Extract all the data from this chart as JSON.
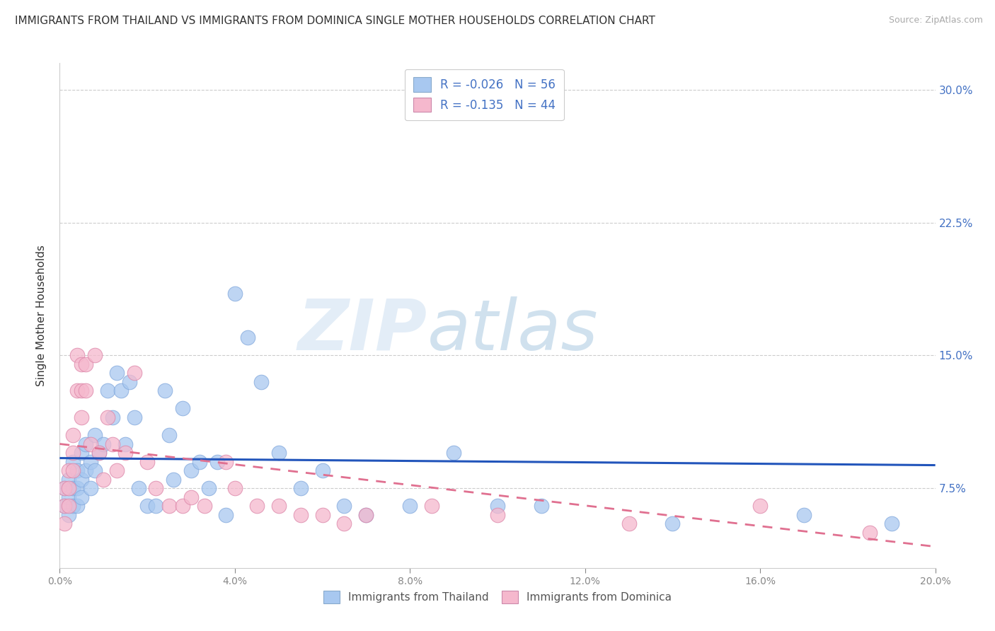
{
  "title": "IMMIGRANTS FROM THAILAND VS IMMIGRANTS FROM DOMINICA SINGLE MOTHER HOUSEHOLDS CORRELATION CHART",
  "source": "Source: ZipAtlas.com",
  "ylabel": "Single Mother Households",
  "ytick_labels": [
    "7.5%",
    "15.0%",
    "22.5%",
    "30.0%"
  ],
  "ytick_values": [
    0.075,
    0.15,
    0.225,
    0.3
  ],
  "xlim": [
    0.0,
    0.2
  ],
  "ylim": [
    0.03,
    0.315
  ],
  "legend_R_thailand": "-0.026",
  "legend_N_thailand": "56",
  "legend_R_dominica": "-0.135",
  "legend_N_dominica": "44",
  "color_thailand": "#a8c8f0",
  "color_dominica": "#f5b8cd",
  "line_color_thailand": "#2255bb",
  "line_color_dominica": "#e07090",
  "background_color": "#ffffff",
  "watermark_zip": "ZIP",
  "watermark_atlas": "atlas",
  "title_fontsize": 11,
  "source_fontsize": 9,
  "thailand_x": [
    0.001,
    0.001,
    0.002,
    0.002,
    0.002,
    0.003,
    0.003,
    0.003,
    0.004,
    0.004,
    0.004,
    0.005,
    0.005,
    0.005,
    0.006,
    0.006,
    0.007,
    0.007,
    0.008,
    0.008,
    0.009,
    0.01,
    0.011,
    0.012,
    0.013,
    0.014,
    0.015,
    0.016,
    0.017,
    0.018,
    0.02,
    0.022,
    0.024,
    0.025,
    0.026,
    0.028,
    0.03,
    0.032,
    0.034,
    0.036,
    0.038,
    0.04,
    0.043,
    0.046,
    0.05,
    0.055,
    0.06,
    0.065,
    0.07,
    0.08,
    0.09,
    0.1,
    0.11,
    0.14,
    0.17,
    0.19
  ],
  "thailand_y": [
    0.075,
    0.065,
    0.08,
    0.07,
    0.06,
    0.09,
    0.075,
    0.065,
    0.085,
    0.075,
    0.065,
    0.095,
    0.08,
    0.07,
    0.1,
    0.085,
    0.09,
    0.075,
    0.105,
    0.085,
    0.095,
    0.1,
    0.13,
    0.115,
    0.14,
    0.13,
    0.1,
    0.135,
    0.115,
    0.075,
    0.065,
    0.065,
    0.13,
    0.105,
    0.08,
    0.12,
    0.085,
    0.09,
    0.075,
    0.09,
    0.06,
    0.185,
    0.16,
    0.135,
    0.095,
    0.075,
    0.085,
    0.065,
    0.06,
    0.065,
    0.095,
    0.065,
    0.065,
    0.055,
    0.06,
    0.055
  ],
  "dominica_x": [
    0.001,
    0.001,
    0.001,
    0.002,
    0.002,
    0.002,
    0.003,
    0.003,
    0.003,
    0.004,
    0.004,
    0.005,
    0.005,
    0.005,
    0.006,
    0.006,
    0.007,
    0.008,
    0.009,
    0.01,
    0.011,
    0.012,
    0.013,
    0.015,
    0.017,
    0.02,
    0.022,
    0.025,
    0.028,
    0.03,
    0.033,
    0.038,
    0.04,
    0.045,
    0.05,
    0.055,
    0.06,
    0.065,
    0.07,
    0.085,
    0.1,
    0.13,
    0.16,
    0.185
  ],
  "dominica_y": [
    0.075,
    0.065,
    0.055,
    0.085,
    0.075,
    0.065,
    0.105,
    0.095,
    0.085,
    0.15,
    0.13,
    0.145,
    0.13,
    0.115,
    0.145,
    0.13,
    0.1,
    0.15,
    0.095,
    0.08,
    0.115,
    0.1,
    0.085,
    0.095,
    0.14,
    0.09,
    0.075,
    0.065,
    0.065,
    0.07,
    0.065,
    0.09,
    0.075,
    0.065,
    0.065,
    0.06,
    0.06,
    0.055,
    0.06,
    0.065,
    0.06,
    0.055,
    0.065,
    0.05
  ],
  "th_line_x0": 0.0,
  "th_line_x1": 0.2,
  "th_line_y0": 0.092,
  "th_line_y1": 0.088,
  "dom_line_x0": 0.0,
  "dom_line_x1": 0.2,
  "dom_line_y0": 0.1,
  "dom_line_y1": 0.042
}
